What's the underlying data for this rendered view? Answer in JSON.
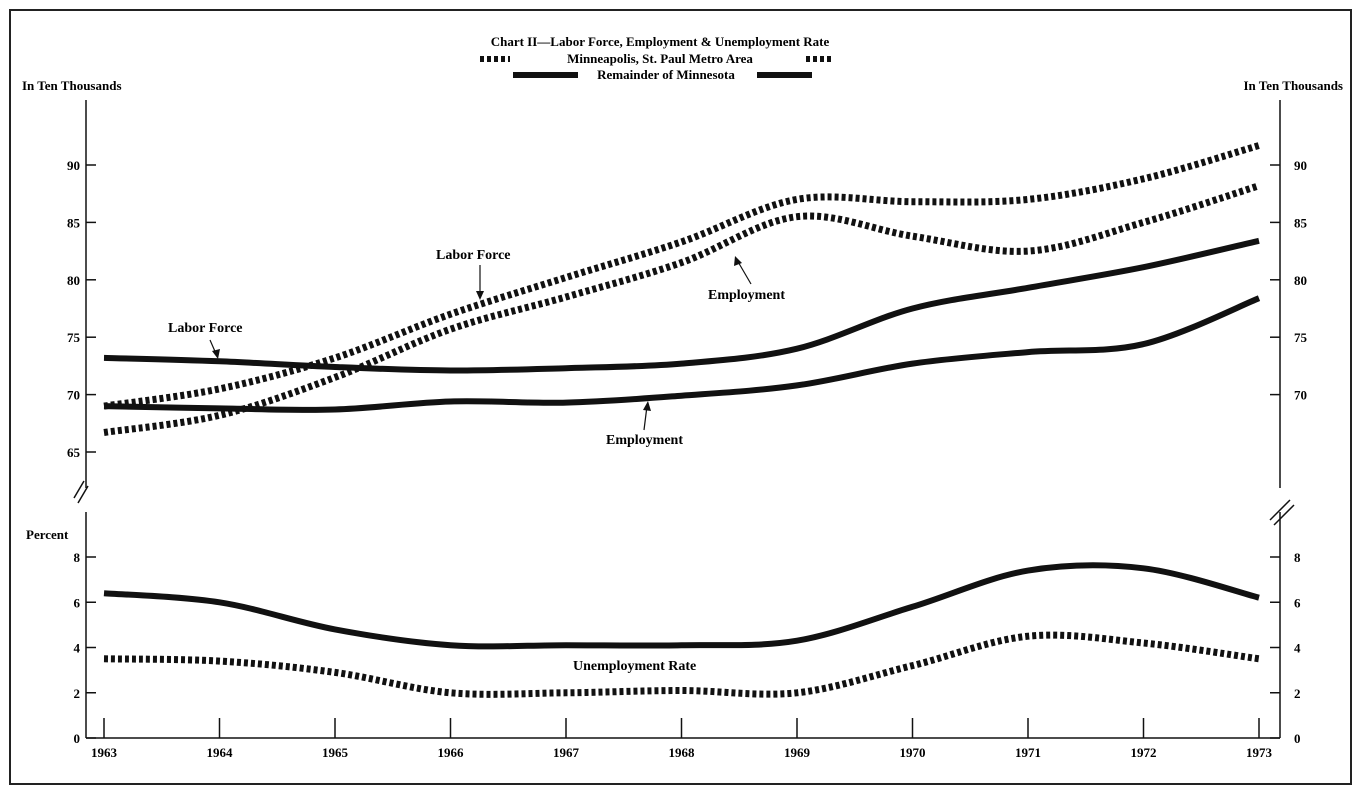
{
  "chart_data": {
    "type": "line",
    "title": "Chart II—Labor Force, Employment & Unemployment Rate",
    "legend": [
      {
        "label": "Minneapolis, St. Paul Metro Area",
        "style": "dashed"
      },
      {
        "label": "Remainder of Minnesota",
        "style": "solid"
      }
    ],
    "x": [
      1963,
      1964,
      1965,
      1966,
      1967,
      1968,
      1969,
      1970,
      1971,
      1972,
      1973
    ],
    "upper_panel": {
      "unit_label_left": "In Ten Thousands",
      "unit_label_right": "In Ten Thousands",
      "ylim": [
        61,
        95
      ],
      "left_ticks": [
        65,
        70,
        75,
        80,
        85,
        90
      ],
      "right_ticks": [
        70,
        75,
        80,
        85,
        90
      ],
      "series": [
        {
          "id": "metro-labor-force",
          "style": "dashed",
          "values": [
            69.0,
            70.5,
            73.2,
            77.0,
            80.2,
            83.3,
            87.0,
            86.8,
            87.0,
            88.8,
            91.7
          ]
        },
        {
          "id": "metro-employment",
          "style": "dashed",
          "values": [
            66.7,
            68.2,
            71.5,
            75.7,
            78.5,
            81.5,
            85.5,
            83.8,
            82.5,
            85.0,
            88.2
          ]
        },
        {
          "id": "remainder-labor-force",
          "style": "solid",
          "values": [
            73.2,
            72.9,
            72.4,
            72.1,
            72.3,
            72.7,
            74.0,
            77.5,
            79.3,
            81.1,
            83.4
          ]
        },
        {
          "id": "remainder-employment",
          "style": "solid",
          "values": [
            69.0,
            68.8,
            68.7,
            69.4,
            69.3,
            69.9,
            70.8,
            72.7,
            73.7,
            74.4,
            78.4
          ]
        }
      ],
      "annotations": {
        "labor_force_metro": "Labor Force",
        "labor_force_remainder": "Labor Force",
        "employment_metro": "Employment",
        "employment_remainder": "Employment"
      }
    },
    "lower_panel": {
      "unit_label": "Percent",
      "ylim": [
        0,
        9
      ],
      "ticks": [
        0,
        2,
        4,
        6,
        8
      ],
      "series": [
        {
          "id": "remainder-unemployment-rate",
          "style": "solid",
          "values": [
            6.4,
            6.0,
            4.8,
            4.1,
            4.1,
            4.1,
            4.3,
            5.8,
            7.4,
            7.5,
            6.2
          ]
        },
        {
          "id": "metro-unemployment-rate",
          "style": "dashed",
          "values": [
            3.5,
            3.4,
            2.9,
            2.0,
            2.0,
            2.1,
            2.0,
            3.2,
            4.5,
            4.2,
            3.5
          ]
        }
      ],
      "annotation": "Unemployment Rate"
    }
  }
}
